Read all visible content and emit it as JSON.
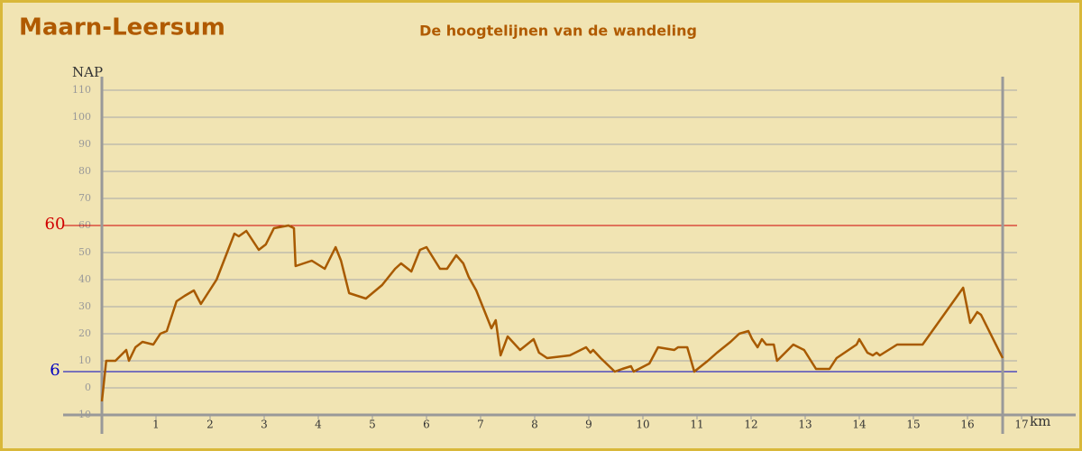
{
  "chart_data": {
    "type": "line",
    "title": "Maarn-Leersum",
    "subtitle": "De hoogtelijnen van de wandeling",
    "y_label": "NAP",
    "x_label": "km",
    "color": "#a85a00",
    "grid": true,
    "xlim": [
      0,
      18
    ],
    "ylim": [
      -10,
      115
    ],
    "xticks": [
      1,
      2,
      3,
      4,
      5,
      6,
      7,
      8,
      9,
      10,
      11,
      12,
      13,
      14,
      15,
      16,
      17
    ],
    "yticks": [
      -10,
      0,
      10,
      20,
      30,
      40,
      50,
      60,
      70,
      80,
      90,
      100,
      110
    ],
    "reference_lines": [
      {
        "value": 60,
        "color": "#d00000"
      },
      {
        "value": 6,
        "color": "#0000c0"
      }
    ],
    "x": [
      0,
      0.08,
      0.25,
      0.45,
      0.5,
      0.62,
      0.75,
      0.95,
      1.08,
      1.2,
      1.38,
      1.53,
      1.7,
      1.83,
      2.12,
      2.45,
      2.53,
      2.67,
      2.9,
      3.03,
      3.18,
      3.45,
      3.55,
      3.58,
      3.88,
      4.12,
      4.32,
      4.42,
      4.57,
      4.88,
      5.18,
      5.42,
      5.53,
      5.72,
      5.88,
      6.0,
      6.25,
      6.38,
      6.55,
      6.68,
      6.78,
      6.92,
      7.2,
      7.28,
      7.37,
      7.5,
      7.73,
      7.98,
      8.08,
      8.23,
      8.65,
      8.95,
      9.03,
      9.08,
      9.22,
      9.48,
      9.62,
      9.78,
      9.83,
      10.12,
      10.28,
      10.58,
      10.65,
      10.82,
      10.95,
      11.2,
      11.37,
      11.62,
      11.78,
      11.95,
      12.02,
      12.12,
      12.2,
      12.28,
      12.42,
      12.48,
      12.78,
      12.98,
      13.2,
      13.45,
      13.58,
      13.95,
      14.0,
      14.15,
      14.25,
      14.32,
      14.38,
      14.62,
      14.7,
      15.17,
      15.92,
      16.05,
      16.18,
      16.25,
      16.65
    ],
    "values": [
      -5,
      10,
      10,
      14,
      10,
      15,
      17,
      16,
      20,
      21,
      32,
      34,
      36,
      31,
      40,
      57,
      56,
      58,
      51,
      53,
      59,
      60,
      59,
      45,
      47,
      44,
      52,
      47,
      35,
      33,
      38,
      44,
      46,
      43,
      51,
      52,
      44,
      44,
      49,
      46,
      41,
      36,
      22,
      25,
      12,
      19,
      14,
      18,
      13,
      11,
      12,
      15,
      13,
      14,
      11,
      6,
      7,
      8,
      6,
      9,
      15,
      14,
      15,
      15,
      6,
      10,
      13,
      17,
      20,
      21,
      18,
      15,
      18,
      16,
      16,
      10,
      16,
      14,
      7,
      7,
      11,
      16,
      18,
      13,
      12,
      13,
      12,
      15,
      16,
      16,
      37,
      24,
      28,
      27,
      11
    ]
  }
}
